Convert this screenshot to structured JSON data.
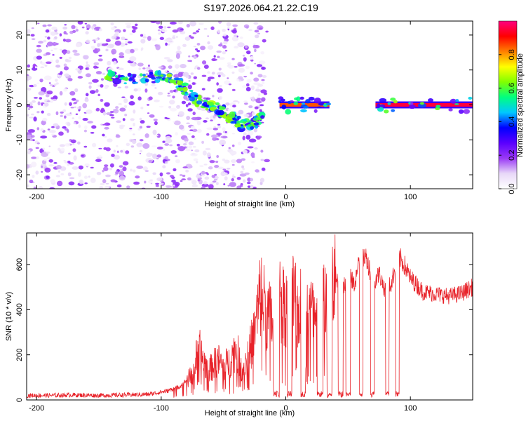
{
  "title": "S197.2026.064.21.22.C19",
  "chart_data": [
    {
      "type": "heatmap",
      "title": "S197.2026.064.21.22.C19",
      "xlabel": "Height of straight line (km)",
      "ylabel": "Frequency (Hz)",
      "xlim": [
        -208,
        150
      ],
      "ylim": [
        -24,
        24
      ],
      "xticks": [
        -200,
        -100,
        0,
        100
      ],
      "yticks": [
        -20,
        -10,
        0,
        10,
        20
      ],
      "colorbar": {
        "label": "Normalized spectral amplitude",
        "range": [
          0.0,
          1.0
        ],
        "ticks": [
          0.0,
          0.2,
          0.4,
          0.6,
          0.8
        ],
        "tick_labels": [
          "0.0",
          "0.2",
          "0.4",
          "0.6",
          "0.8"
        ],
        "colors": [
          "#ffffff",
          "#e8d8f8",
          "#9a3af5",
          "#5a00ff",
          "#0000ff",
          "#00c8ff",
          "#00ff80",
          "#80ff00",
          "#ffff00",
          "#ff8000",
          "#ff0000",
          "#ff0080"
        ]
      },
      "features": [
        {
          "label": "diffuse noise",
          "x_range": [
            -208,
            -15
          ],
          "freq_range": [
            -24,
            24
          ],
          "amplitude": 0.12
        },
        {
          "label": "descending track",
          "points": [
            [
              -145,
              9
            ],
            [
              -130,
              7
            ],
            [
              -110,
              8
            ],
            [
              -95,
              8
            ],
            [
              -85,
              6
            ],
            [
              -75,
              2
            ],
            [
              -65,
              0
            ],
            [
              -55,
              -1
            ],
            [
              -45,
              -3
            ],
            [
              -35,
              -6
            ],
            [
              -25,
              -5
            ],
            [
              -18,
              -3
            ]
          ],
          "amplitude": 0.45
        },
        {
          "label": "band",
          "x_range": [
            -5,
            35
          ],
          "freq": 0,
          "amplitude": 0.85
        },
        {
          "label": "band",
          "x_range": [
            72,
            150
          ],
          "freq": 0,
          "amplitude": 0.95
        }
      ]
    },
    {
      "type": "line",
      "xlabel": "Height of straight line (km)",
      "ylabel": "SNR (10 * v/v)",
      "xlim": [
        -208,
        150
      ],
      "ylim": [
        0,
        740
      ],
      "xticks": [
        -200,
        -100,
        0,
        100
      ],
      "yticks": [
        0,
        200,
        400,
        600
      ],
      "series": [
        {
          "name": "SNR",
          "color": "#e8232a",
          "x": [
            -208,
            -190,
            -170,
            -150,
            -130,
            -110,
            -95,
            -85,
            -75,
            -70,
            -65,
            -60,
            -55,
            -50,
            -45,
            -40,
            -35,
            -30,
            -25,
            -20,
            -15,
            -10,
            -5,
            0,
            5,
            10,
            15,
            20,
            25,
            30,
            35,
            40,
            45,
            50,
            55,
            60,
            65,
            70,
            75,
            80,
            85,
            90,
            95,
            100,
            110,
            120,
            130,
            140,
            150
          ],
          "values": [
            20,
            20,
            22,
            20,
            22,
            25,
            40,
            60,
            110,
            230,
            160,
            140,
            180,
            150,
            170,
            230,
            140,
            200,
            300,
            480,
            380,
            350,
            450,
            420,
            470,
            380,
            470,
            400,
            320,
            420,
            380,
            560,
            470,
            560,
            510,
            640,
            630,
            520,
            560,
            480,
            520,
            640,
            600,
            540,
            480,
            470,
            460,
            470,
            500
          ]
        }
      ],
      "dropouts": [
        [
          -10,
          -5
        ],
        [
          1,
          5
        ],
        [
          12,
          16
        ],
        [
          25,
          30
        ],
        [
          33,
          37
        ],
        [
          42,
          46
        ],
        [
          48,
          52
        ],
        [
          59,
          62
        ],
        [
          68,
          71
        ],
        [
          80,
          83
        ],
        [
          88,
          91
        ]
      ]
    }
  ]
}
